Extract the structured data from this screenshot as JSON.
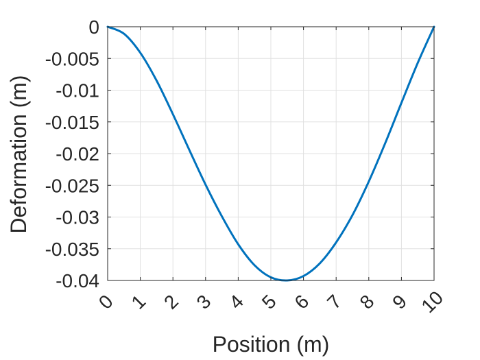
{
  "chart_data": {
    "type": "line",
    "xlabel": "Position (m)",
    "ylabel": "Deformation (m)",
    "xlim": [
      0,
      10
    ],
    "ylim": [
      -0.04,
      0
    ],
    "xticks": [
      0,
      1,
      2,
      3,
      4,
      5,
      6,
      7,
      8,
      9,
      10
    ],
    "xtick_labels": [
      "0",
      "1",
      "2",
      "3",
      "4",
      "5",
      "6",
      "7",
      "8",
      "9",
      "10"
    ],
    "yticks": [
      0,
      -0.005,
      -0.01,
      -0.015,
      -0.02,
      -0.025,
      -0.03,
      -0.035,
      -0.04
    ],
    "ytick_labels": [
      "0",
      "-0.005",
      "-0.01",
      "-0.015",
      "-0.02",
      "-0.025",
      "-0.03",
      "-0.035",
      "-0.04"
    ],
    "grid": true,
    "series": [
      {
        "color": "#0072bd",
        "x": [
          0,
          0.5,
          1,
          1.5,
          2,
          2.5,
          3,
          3.5,
          4,
          4.5,
          5,
          5.5,
          6,
          6.5,
          7,
          7.5,
          8,
          8.5,
          9,
          9.5,
          10
        ],
        "y": [
          0,
          -0.0011,
          -0.0041,
          -0.0085,
          -0.0138,
          -0.0194,
          -0.0249,
          -0.0299,
          -0.0343,
          -0.0376,
          -0.0395,
          -0.04,
          -0.0393,
          -0.0373,
          -0.034,
          -0.0297,
          -0.0244,
          -0.0184,
          -0.012,
          -0.0057,
          0
        ]
      }
    ]
  }
}
